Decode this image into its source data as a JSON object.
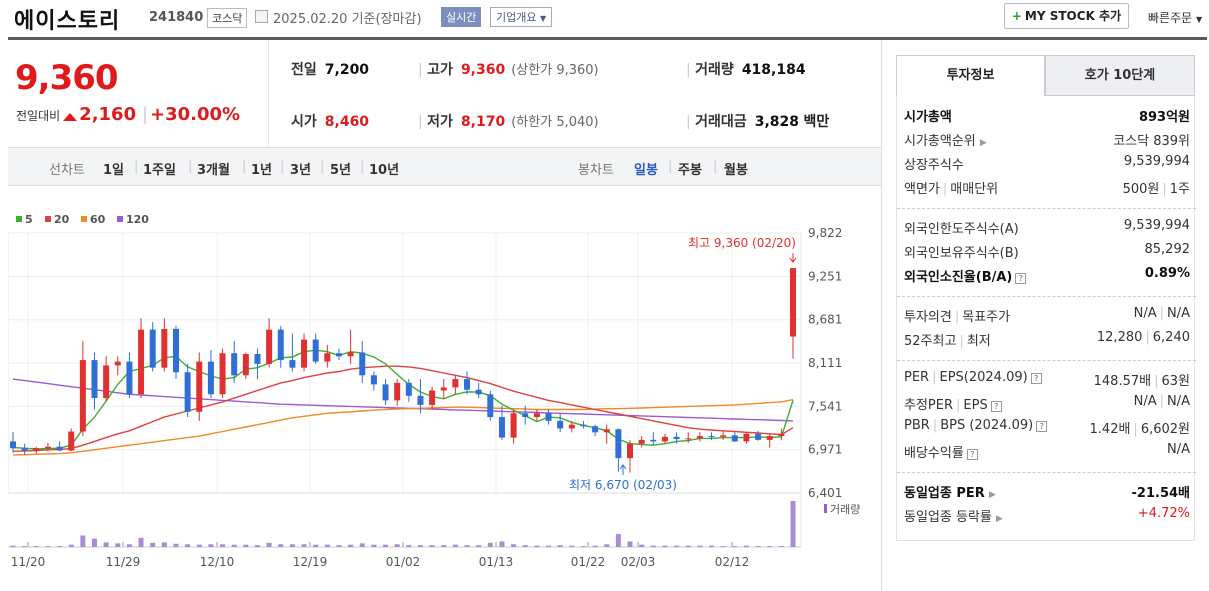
{
  "header": {
    "name": "에이스토리",
    "code": "241840",
    "market": "코스닥",
    "date": "2025.02.20",
    "basis": "기준(장마감)",
    "realtime": "실시간",
    "company_info": "기업개요",
    "mystock": "MY STOCK 추가",
    "fast_order": "빠른주문"
  },
  "price": {
    "current": "9,360",
    "change_label": "전일대비",
    "change": "2,160",
    "change_pct": "+30.00%",
    "prev_label": "전일",
    "prev": "7,200",
    "high_label": "고가",
    "high": "9,360",
    "upper_limit": "(상한가 9,360)",
    "volume_label": "거래량",
    "volume": "418,184",
    "open_label": "시가",
    "open": "8,460",
    "low_label": "저가",
    "low": "8,170",
    "lower_limit": "(하한가 5,040)",
    "amount_label": "거래대금",
    "amount": "3,828",
    "amount_unit": "백만"
  },
  "period_tabs": {
    "label": "선차트",
    "items": [
      "1일",
      "1주일",
      "3개월",
      "1년",
      "3년",
      "5년",
      "10년"
    ],
    "candle_label": "봉차트",
    "candle_items": [
      "일봉",
      "주봉",
      "월봉"
    ],
    "active_candle": "일봉"
  },
  "chart_data": {
    "type": "candlestick",
    "legend": [
      {
        "name": "5",
        "color": "#3cb030"
      },
      {
        "name": "20",
        "color": "#e04040"
      },
      {
        "name": "60",
        "color": "#f08a24"
      },
      {
        "name": "120",
        "color": "#9a5cd0"
      }
    ],
    "y_ticks": [
      "9,822",
      "9,251",
      "8,681",
      "8,111",
      "7,541",
      "6,971",
      "6,401"
    ],
    "ylim": [
      6401,
      9822
    ],
    "x_ticks": [
      "11/20",
      "11/29",
      "12/10",
      "12/19",
      "01/02",
      "01/13",
      "01/22",
      "02/03",
      "02/12"
    ],
    "high_note": "최고 9,360 (02/20)",
    "low_note": "최저 6,670 (02/03)",
    "volume_label": "거래량",
    "candles": [
      [
        7080,
        7200,
        6930,
        6990
      ],
      [
        6990,
        7050,
        6900,
        6960
      ],
      [
        6960,
        7010,
        6920,
        6990
      ],
      [
        6990,
        7060,
        6950,
        7010
      ],
      [
        7010,
        7080,
        6950,
        6960
      ],
      [
        6960,
        7250,
        6950,
        7210
      ],
      [
        7210,
        8400,
        7150,
        8150
      ],
      [
        8150,
        8250,
        7500,
        7650
      ],
      [
        7650,
        8200,
        7600,
        8080
      ],
      [
        8080,
        8200,
        7950,
        8130
      ],
      [
        8130,
        8250,
        7650,
        7700
      ],
      [
        7700,
        8700,
        7650,
        8550
      ],
      [
        8550,
        8650,
        8000,
        8050
      ],
      [
        8050,
        8700,
        8000,
        8560
      ],
      [
        8560,
        8600,
        7900,
        7990
      ],
      [
        7990,
        8100,
        7400,
        7470
      ],
      [
        7470,
        8250,
        7350,
        8130
      ],
      [
        8130,
        8280,
        7650,
        7700
      ],
      [
        7700,
        8300,
        7650,
        8240
      ],
      [
        8240,
        8400,
        7850,
        7950
      ],
      [
        7950,
        8250,
        7900,
        8230
      ],
      [
        8230,
        8300,
        7900,
        8100
      ],
      [
        8100,
        8700,
        8050,
        8550
      ],
      [
        8550,
        8600,
        8050,
        8150
      ],
      [
        8150,
        8500,
        8000,
        8050
      ],
      [
        8050,
        8500,
        8000,
        8420
      ],
      [
        8420,
        8500,
        8100,
        8130
      ],
      [
        8130,
        8350,
        8050,
        8240
      ],
      [
        8240,
        8300,
        8150,
        8200
      ],
      [
        8200,
        8550,
        8100,
        8250
      ],
      [
        8250,
        8400,
        7850,
        7950
      ],
      [
        7950,
        8000,
        7750,
        7830
      ],
      [
        7830,
        7900,
        7560,
        7620
      ],
      [
        7620,
        7900,
        7550,
        7850
      ],
      [
        7850,
        7900,
        7600,
        7680
      ],
      [
        7680,
        7900,
        7450,
        7560
      ],
      [
        7560,
        7800,
        7500,
        7750
      ],
      [
        7750,
        7900,
        7650,
        7790
      ],
      [
        7790,
        7950,
        7700,
        7900
      ],
      [
        7900,
        8000,
        7700,
        7760
      ],
      [
        7760,
        7850,
        7650,
        7700
      ],
      [
        7700,
        7750,
        7350,
        7400
      ],
      [
        7400,
        7550,
        7100,
        7130
      ],
      [
        7130,
        7500,
        7050,
        7450
      ],
      [
        7450,
        7550,
        7300,
        7400
      ],
      [
        7400,
        7500,
        7350,
        7450
      ],
      [
        7450,
        7500,
        7300,
        7350
      ],
      [
        7350,
        7450,
        7200,
        7250
      ],
      [
        7250,
        7350,
        7200,
        7300
      ],
      [
        7300,
        7350,
        7250,
        7280
      ],
      [
        7280,
        7300,
        7150,
        7200
      ],
      [
        7200,
        7300,
        7050,
        7240
      ],
      [
        7240,
        7250,
        6680,
        6860
      ],
      [
        6860,
        7100,
        6670,
        7050
      ],
      [
        7050,
        7150,
        7000,
        7100
      ],
      [
        7100,
        7200,
        7030,
        7080
      ],
      [
        7080,
        7180,
        7050,
        7140
      ],
      [
        7140,
        7200,
        7050,
        7110
      ],
      [
        7110,
        7200,
        7060,
        7120
      ],
      [
        7120,
        7200,
        7080,
        7150
      ],
      [
        7150,
        7200,
        7100,
        7140
      ],
      [
        7140,
        7220,
        7100,
        7160
      ],
      [
        7160,
        7200,
        7070,
        7080
      ],
      [
        7080,
        7200,
        7050,
        7180
      ],
      [
        7180,
        7220,
        7090,
        7100
      ],
      [
        7100,
        7180,
        7000,
        7150
      ],
      [
        7150,
        7250,
        7100,
        7180
      ],
      [
        8460,
        9360,
        8170,
        9360
      ]
    ],
    "volumes": [
      3,
      2,
      2,
      2,
      2,
      5,
      25,
      18,
      10,
      8,
      6,
      20,
      9,
      10,
      7,
      6,
      5,
      6,
      6,
      5,
      5,
      4,
      9,
      6,
      6,
      6,
      5,
      5,
      4,
      5,
      8,
      5,
      5,
      6,
      4,
      4,
      4,
      4,
      5,
      4,
      4,
      9,
      12,
      6,
      4,
      3,
      3,
      4,
      3,
      2,
      3,
      6,
      28,
      12,
      5,
      3,
      3,
      3,
      3,
      3,
      3,
      2,
      2,
      3,
      2,
      2,
      2,
      100
    ],
    "ma5": [
      7000,
      6990,
      6980,
      6985,
      6990,
      7030,
      7240,
      7400,
      7610,
      7830,
      8000,
      8040,
      8080,
      8180,
      8200,
      8060,
      8000,
      7940,
      7900,
      7920,
      8030,
      8050,
      8110,
      8180,
      8190,
      8260,
      8280,
      8260,
      8210,
      8260,
      8240,
      8190,
      8100,
      7960,
      7830,
      7730,
      7670,
      7640,
      7700,
      7730,
      7730,
      7680,
      7570,
      7490,
      7420,
      7340,
      7400,
      7390,
      7330,
      7290,
      7260,
      7220,
      7110,
      7050,
      7040,
      7030,
      7050,
      7080,
      7090,
      7120,
      7120,
      7130,
      7130,
      7130,
      7140,
      7130,
      7140,
      7620
    ],
    "ma20": [
      6950,
      6955,
      6960,
      6970,
      6975,
      6985,
      7030,
      7080,
      7130,
      7180,
      7220,
      7280,
      7340,
      7400,
      7440,
      7480,
      7520,
      7560,
      7600,
      7650,
      7700,
      7750,
      7800,
      7850,
      7880,
      7920,
      7950,
      7980,
      8000,
      8030,
      8050,
      8060,
      8070,
      8070,
      8060,
      8040,
      8010,
      7980,
      7950,
      7920,
      7880,
      7840,
      7790,
      7740,
      7700,
      7660,
      7620,
      7590,
      7560,
      7530,
      7500,
      7470,
      7440,
      7410,
      7380,
      7350,
      7320,
      7290,
      7260,
      7240,
      7230,
      7220,
      7210,
      7200,
      7190,
      7180,
      7170,
      7260
    ],
    "ma60": [
      6900,
      6905,
      6910,
      6915,
      6920,
      6930,
      6950,
      6970,
      6990,
      7010,
      7030,
      7050,
      7070,
      7090,
      7110,
      7130,
      7150,
      7180,
      7210,
      7240,
      7270,
      7300,
      7330,
      7360,
      7390,
      7410,
      7430,
      7450,
      7460,
      7470,
      7480,
      7490,
      7500,
      7505,
      7510,
      7515,
      7520,
      7525,
      7530,
      7530,
      7525,
      7520,
      7515,
      7510,
      7505,
      7500,
      7500,
      7500,
      7500,
      7500,
      7505,
      7510,
      7510,
      7515,
      7520,
      7525,
      7530,
      7535,
      7540,
      7545,
      7550,
      7555,
      7560,
      7570,
      7580,
      7590,
      7600,
      7630
    ],
    "ma120": [
      7900,
      7880,
      7860,
      7840,
      7820,
      7800,
      7780,
      7760,
      7740,
      7720,
      7700,
      7690,
      7680,
      7670,
      7660,
      7650,
      7640,
      7630,
      7620,
      7610,
      7600,
      7590,
      7580,
      7570,
      7565,
      7560,
      7555,
      7550,
      7545,
      7540,
      7535,
      7530,
      7525,
      7520,
      7515,
      7510,
      7505,
      7500,
      7495,
      7490,
      7485,
      7480,
      7475,
      7470,
      7465,
      7460,
      7455,
      7450,
      7445,
      7440,
      7435,
      7430,
      7425,
      7420,
      7415,
      7410,
      7405,
      7400,
      7395,
      7390,
      7385,
      7380,
      7375,
      7370,
      7365,
      7360,
      7355,
      7350
    ]
  },
  "invest": {
    "tab1": "투자정보",
    "tab2": "호가 10단계",
    "rows": [
      {
        "k": "시가총액",
        "v": "893억원",
        "bold": true
      },
      {
        "k": "시가총액순위",
        "v": "코스닥 839위",
        "arrow": true
      },
      {
        "k": "상장주식수",
        "v": "9,539,994"
      },
      {
        "k": "액면가",
        "k2": "매매단위",
        "v": "500원",
        "v2": "1주"
      },
      {
        "k": "외국인한도주식수(A)",
        "v": "9,539,994"
      },
      {
        "k": "외국인보유주식수(B)",
        "v": "85,292"
      },
      {
        "k": "외국인소진율(B/A)",
        "v": "0.89%",
        "bold": true,
        "q": true
      },
      {
        "k": "투자의견",
        "k2": "목표주가",
        "v": "N/A",
        "v2": "N/A"
      },
      {
        "k": "52주최고",
        "k2": "최저",
        "v": "12,280",
        "v2": "6,240"
      },
      {
        "k": "PER",
        "k2": "EPS(2024.09)",
        "v": "148.57배",
        "v2": "63원",
        "q": true
      },
      {
        "k": "추정PER",
        "k2": "EPS",
        "v": "N/A",
        "v2": "N/A",
        "q": true
      },
      {
        "k": "PBR",
        "k2": "BPS (2024.09)",
        "v": "1.42배",
        "v2": "6,602원",
        "q": true
      },
      {
        "k": "배당수익률",
        "v": "N/A",
        "q": true
      },
      {
        "k": "동일업종 PER",
        "v": "-21.54배",
        "bold": true,
        "arrow": true
      },
      {
        "k": "동일업종 등락률",
        "v": "+4.72%",
        "red": true,
        "arrow": true
      }
    ]
  }
}
